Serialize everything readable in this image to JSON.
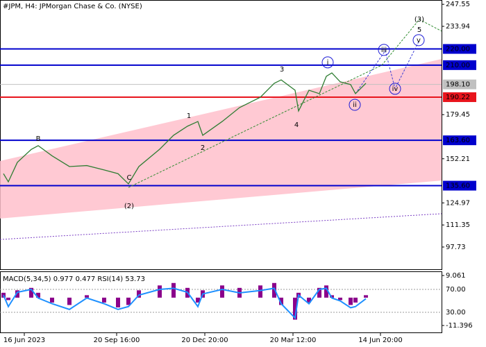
{
  "chart_data": [
    {
      "type": "line",
      "title": "#JPM, H4:  JPMorgan Chase & Co. (NYSE)",
      "x": [
        10,
        24,
        50,
        90,
        110,
        150,
        200,
        250,
        300,
        340,
        370,
        400,
        460,
        500,
        540,
        570,
        584,
        640,
        690,
        750,
        790,
        810,
        850,
        860,
        890,
        920,
        940,
        956,
        980,
        1010,
        1024,
        1054
      ],
      "values": [
        143,
        138,
        150,
        158,
        160.3,
        154,
        147.4,
        148,
        145.3,
        143,
        136.7,
        147.4,
        158.1,
        166.7,
        172.3,
        175.2,
        166.7,
        175.2,
        183.8,
        190.2,
        198.8,
        200.9,
        194.5,
        181.7,
        194.5,
        192.4,
        203.1,
        205.2,
        199.7,
        198.0,
        192.4,
        198.8
      ],
      "color": "#2e7d32",
      "xlim": [
        0,
        1272
      ],
      "xticks": [
        {
          "value": 70,
          "label": "16 Jun 2023"
        },
        {
          "value": 336,
          "label": "20 Sep 16:00"
        },
        {
          "value": 590,
          "label": "20 Dec 20:00"
        },
        {
          "value": 844,
          "label": "20 Mar 12:00"
        },
        {
          "value": 1096,
          "label": "14 Jun 20:00"
        }
      ],
      "ylim": [
        84.0,
        250.2
      ],
      "yticks": [
        247.55,
        233.94,
        179.45,
        152.21,
        124.97,
        111.35,
        97.73
      ],
      "levels": [
        {
          "value": 220,
          "label": "220.00",
          "color": "#0000cd"
        },
        {
          "value": 210,
          "label": "210.00",
          "color": "#0000cd"
        },
        {
          "value": 190.22,
          "label": "190.22",
          "color": "#e8141c"
        },
        {
          "value": 163.6,
          "label": "163.60",
          "color": "#0000cd"
        },
        {
          "value": 135.6,
          "label": "135.60",
          "color": "#0000cd"
        }
      ],
      "current_price": {
        "value": 198.1,
        "label": "198.10",
        "color": "#c0c0c0"
      },
      "channel": {
        "x": [
          0,
          1272
        ],
        "upper": [
          150.8,
          213.8
        ],
        "lower": [
          115.3,
          138.8
        ],
        "color": "#ffc0cb"
      },
      "support_line": {
        "x": [
          0,
          1272
        ],
        "values": [
          102.4,
          118.3
        ],
        "color": "#7b3fc4"
      },
      "wave_lines": [
        {
          "color": "#2e8b2e",
          "x": [
            370,
            760,
            1100,
            1208,
            1272
          ],
          "values": [
            134.5,
            175,
            210,
            238.2,
            231
          ]
        },
        {
          "color": "#3b3bd6",
          "x": [
            1024,
            1110,
            1138,
            1206
          ],
          "values": [
            192.4,
            218.9,
            195.4,
            224.5
          ]
        }
      ],
      "annotations": [
        {
          "text": "B",
          "x": 110,
          "y": 164.5,
          "color": "#a0522d",
          "circle": false
        },
        {
          "text": "C",
          "x": 372,
          "y": 140.5,
          "color": "#a0522d",
          "circle": false
        },
        {
          "text": "(2)",
          "x": 372,
          "y": 123.0,
          "color": "#2e8b2e",
          "circle": false
        },
        {
          "text": "1",
          "x": 544,
          "y": 178.7,
          "color": "#a0522d",
          "circle": false
        },
        {
          "text": "2",
          "x": 584,
          "y": 159.0,
          "color": "#a0522d",
          "circle": false
        },
        {
          "text": "3",
          "x": 812,
          "y": 207.4,
          "color": "#a0522d",
          "circle": false
        },
        {
          "text": "4",
          "x": 854,
          "y": 173.1,
          "color": "#a0522d",
          "circle": false
        },
        {
          "text": "i",
          "x": 944,
          "y": 211.7,
          "color": "#1a1ad6",
          "circle": true
        },
        {
          "text": "ii",
          "x": 1022,
          "y": 185.5,
          "color": "#1a1ad6",
          "circle": true
        },
        {
          "text": "iii",
          "x": 1106,
          "y": 219.4,
          "color": "#1a1ad6",
          "circle": true
        },
        {
          "text": "iv",
          "x": 1138,
          "y": 195.4,
          "color": "#1a1ad6",
          "circle": true
        },
        {
          "text": "v",
          "x": 1206,
          "y": 225.4,
          "color": "#1a1ad6",
          "circle": true
        },
        {
          "text": "5",
          "x": 1208,
          "y": 231.8,
          "color": "#a0522d",
          "circle": false
        },
        {
          "text": "(3)",
          "x": 1208,
          "y": 238.2,
          "color": "#2e8b2e",
          "circle": false
        }
      ]
    },
    {
      "type": "macd",
      "title": "MACD(5,34,5) 0.977 0.477 RSI(14) 53.73",
      "x": [
        10,
        24,
        50,
        90,
        110,
        150,
        200,
        250,
        300,
        340,
        370,
        400,
        460,
        500,
        540,
        570,
        584,
        640,
        690,
        750,
        790,
        810,
        850,
        860,
        890,
        920,
        940,
        956,
        980,
        1010,
        1024,
        1054
      ],
      "values": [
        2,
        -1,
        3,
        4,
        2,
        -2,
        -3,
        1,
        -2,
        -4,
        -3,
        3,
        5,
        6,
        4,
        -2,
        3,
        5,
        4,
        5,
        6,
        -3,
        -9,
        2,
        -2,
        4,
        5,
        1,
        -1,
        -3,
        -2,
        1
      ],
      "color": "#8b008b",
      "xlim": [
        0,
        1272
      ],
      "ylim": [
        -11.396,
        9.061
      ],
      "yticks": [
        9.061,
        -11.396
      ],
      "rsi_values": [
        60,
        40,
        65,
        70,
        55,
        45,
        35,
        55,
        45,
        35,
        40,
        60,
        70,
        72,
        65,
        40,
        62,
        70,
        64,
        68,
        72,
        45,
        20,
        60,
        45,
        70,
        72,
        55,
        50,
        38,
        40,
        53.73
      ],
      "rsi_color": "#1e90ff",
      "rsi_ylim": [
        7.0,
        94.2
      ],
      "rsi_levels": [
        {
          "value": 70,
          "label": "70.00"
        },
        {
          "value": 30,
          "label": "30.00"
        }
      ]
    }
  ]
}
